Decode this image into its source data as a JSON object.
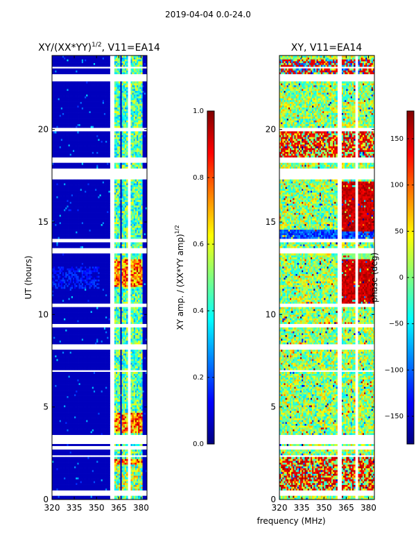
{
  "suptitle": "2019-04-04 0.0-24.0",
  "xlabel": "frequency (MHz)",
  "chart_data": [
    {
      "type": "heatmap",
      "title": "XY/(XX*YY)^1/2, V11=EA14",
      "title_main": "XY/(XX*YY)",
      "title_exp": "1/2",
      "title_tail": ", V11=EA14",
      "xlabel": "frequency (MHz)",
      "ylabel": "UT (hours)",
      "xlim": [
        320,
        384
      ],
      "ylim": [
        0,
        24
      ],
      "xticks": [
        320,
        335,
        350,
        365,
        380
      ],
      "yticks": [
        0,
        5,
        10,
        15,
        20
      ],
      "colorbar": {
        "label": "XY amp. / (XX*YY amp)^1/2",
        "label_main": "XY amp. / (XX*YY amp)",
        "label_exp": "1/2",
        "range": [
          0.0,
          1.0
        ],
        "ticks": [
          "0.0",
          "0.2",
          "0.4",
          "0.6",
          "0.8",
          "1.0"
        ],
        "colormap": "jet"
      },
      "note": "Low values (~0.05) over 320-361 MHz; elevated values (0.3-0.95) in channel bands near 362-366, 367-371, 373-377, 377-381 MHz; strongest around 11.5-13 UT, 3.5-4.7 UT and 0.5-2.3 UT; white rows are flagged times."
    },
    {
      "type": "heatmap",
      "title": "XY, V11=EA14",
      "xlabel": "frequency (MHz)",
      "ylabel": "",
      "xlim": [
        320,
        384
      ],
      "ylim": [
        0,
        24
      ],
      "xticks": [
        320,
        335,
        350,
        365,
        380
      ],
      "yticks": [
        0,
        5,
        10,
        15,
        20
      ],
      "colorbar": {
        "label": "phase (deg)",
        "range": [
          -180,
          180
        ],
        "ticks": [
          "−150",
          "−100",
          "−50",
          "0",
          "50",
          "100",
          "150"
        ],
        "colormap": "jet"
      },
      "note": "Noisy phase across the band with near 180 deg structure at 361-384 MHz around 10.5-13 UT and 14.5-17 UT; white rows are flagged times."
    }
  ],
  "flagged_hours": [
    [
      0.25,
      0.45
    ],
    [
      2.3,
      2.45
    ],
    [
      2.75,
      2.9
    ],
    [
      3.0,
      3.5
    ],
    [
      6.9,
      7.0
    ],
    [
      8.1,
      8.4
    ],
    [
      9.3,
      9.5
    ],
    [
      10.4,
      10.6
    ],
    [
      13.3,
      13.6
    ],
    [
      13.9,
      14.1
    ],
    [
      17.3,
      17.9
    ],
    [
      18.2,
      18.5
    ],
    [
      19.95,
      20.1
    ],
    [
      22.6,
      23.05
    ],
    [
      23.3,
      23.45
    ]
  ]
}
